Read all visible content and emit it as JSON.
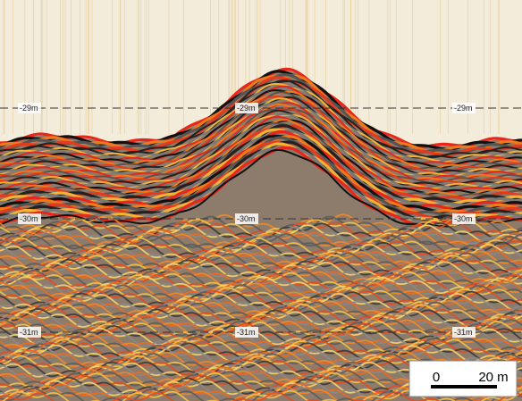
{
  "depth_lines": [
    {
      "label": "-29m"
    },
    {
      "label": "-30m"
    },
    {
      "label": "-31m"
    }
  ],
  "scale_bar": {
    "start": "0",
    "end": "20 m"
  }
}
